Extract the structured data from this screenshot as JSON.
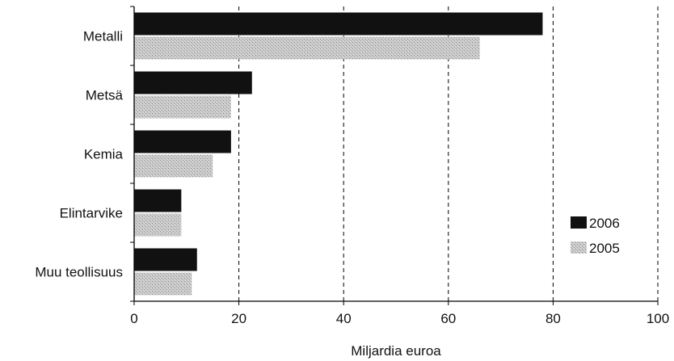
{
  "chart_data": {
    "type": "bar",
    "orientation": "horizontal",
    "categories": [
      "Metalli",
      "Metsä",
      "Kemia",
      "Elintarvike",
      "Muu teollisuus"
    ],
    "series": [
      {
        "name": "2006",
        "values": [
          78,
          22.5,
          18.5,
          9,
          12
        ],
        "color": "#111111"
      },
      {
        "name": "2005",
        "values": [
          66,
          18.5,
          15,
          9,
          11
        ],
        "color": "#bdbdbd"
      }
    ],
    "xlabel": "Miljardia euroa",
    "ylabel": "",
    "xlim": [
      0,
      100
    ],
    "xticks": [
      "0",
      "20",
      "40",
      "60",
      "80",
      "100"
    ],
    "grid": "vertical dashed",
    "legend_position": "right"
  }
}
